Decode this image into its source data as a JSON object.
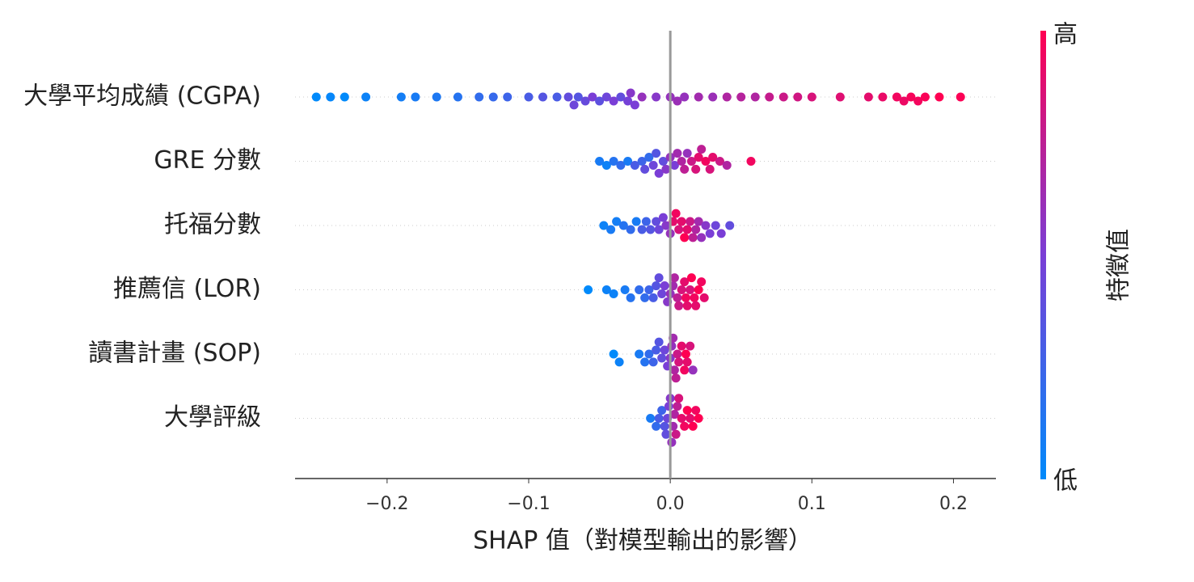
{
  "chart_data": {
    "type": "beeswarm",
    "x_label": "SHAP 值（對模型輸出的影響）",
    "xlim": [
      -0.265,
      0.23
    ],
    "xticks": [
      {
        "value": -0.2,
        "label": "−0.2"
      },
      {
        "value": -0.1,
        "label": "−0.1"
      },
      {
        "value": 0,
        "label": "0.0"
      },
      0.1,
      0.2
    ],
    "colormap": [
      "#008afb",
      "#7a3ed6",
      "#ff0052"
    ],
    "colorbar": {
      "label": "特徵值",
      "high": "高",
      "low": "低"
    },
    "features": [
      {
        "name": "大學平均成績 (CGPA)",
        "shap": [
          -0.25,
          -0.24,
          -0.23,
          -0.215,
          -0.19,
          -0.18,
          -0.165,
          -0.15,
          -0.135,
          -0.125,
          -0.115,
          -0.1,
          -0.09,
          -0.08,
          -0.072,
          -0.068,
          -0.065,
          -0.06,
          -0.055,
          -0.05,
          -0.045,
          -0.04,
          -0.035,
          -0.03,
          -0.028,
          -0.025,
          -0.02,
          -0.01,
          0.0,
          0.005,
          0.01,
          0.02,
          0.03,
          0.04,
          0.05,
          0.06,
          0.07,
          0.08,
          0.09,
          0.1,
          0.12,
          0.14,
          0.15,
          0.16,
          0.165,
          0.17,
          0.175,
          0.18,
          0.19,
          0.205
        ],
        "feature_value": [
          0.0,
          0.02,
          0.0,
          0.05,
          0.08,
          0.1,
          0.12,
          0.15,
          0.2,
          0.22,
          0.25,
          0.3,
          0.35,
          0.3,
          0.4,
          0.45,
          0.35,
          0.42,
          0.5,
          0.38,
          0.45,
          0.5,
          0.4,
          0.48,
          0.55,
          0.5,
          0.6,
          0.55,
          0.6,
          0.62,
          0.6,
          0.65,
          0.62,
          0.7,
          0.72,
          0.7,
          0.78,
          0.8,
          0.82,
          0.85,
          0.88,
          0.9,
          0.92,
          0.95,
          0.93,
          0.97,
          0.96,
          0.98,
          1.0,
          0.99
        ]
      },
      {
        "name": "GRE 分數",
        "shap": [
          -0.05,
          -0.045,
          -0.04,
          -0.035,
          -0.03,
          -0.025,
          -0.02,
          -0.018,
          -0.015,
          -0.012,
          -0.01,
          -0.008,
          -0.005,
          -0.003,
          0.0,
          0.003,
          0.005,
          0.008,
          0.01,
          0.012,
          0.015,
          0.018,
          0.02,
          0.022,
          0.025,
          0.028,
          0.03,
          0.035,
          0.04,
          0.057
        ],
        "feature_value": [
          0.1,
          0.05,
          0.15,
          0.2,
          0.1,
          0.3,
          0.25,
          0.4,
          0.2,
          0.45,
          0.35,
          0.5,
          0.4,
          0.55,
          0.6,
          0.5,
          0.65,
          0.7,
          0.75,
          0.6,
          0.8,
          0.85,
          0.9,
          0.75,
          0.95,
          0.85,
          0.9,
          0.8,
          0.7,
          0.95
        ]
      },
      {
        "name": "托福分數",
        "shap": [
          -0.047,
          -0.042,
          -0.038,
          -0.033,
          -0.028,
          -0.024,
          -0.02,
          -0.017,
          -0.014,
          -0.01,
          -0.008,
          -0.005,
          -0.003,
          0.0,
          0.002,
          0.004,
          0.006,
          0.008,
          0.01,
          0.012,
          0.014,
          0.016,
          0.018,
          0.02,
          0.022,
          0.025,
          0.028,
          0.032,
          0.036,
          0.042
        ],
        "feature_value": [
          0.05,
          0.1,
          0.08,
          0.15,
          0.2,
          0.1,
          0.3,
          0.25,
          0.35,
          0.4,
          0.45,
          0.5,
          0.55,
          0.6,
          0.9,
          0.95,
          0.85,
          0.9,
          1.0,
          0.9,
          0.8,
          0.75,
          0.7,
          0.65,
          0.6,
          0.55,
          0.5,
          0.45,
          0.5,
          0.4
        ]
      },
      {
        "name": "推薦信 (LOR)",
        "shap": [
          -0.058,
          -0.045,
          -0.04,
          -0.032,
          -0.028,
          -0.022,
          -0.018,
          -0.015,
          -0.012,
          -0.01,
          -0.008,
          -0.006,
          -0.004,
          -0.002,
          0.0,
          0.002,
          0.003,
          0.005,
          0.006,
          0.008,
          0.01,
          0.011,
          0.012,
          0.014,
          0.015,
          0.017,
          0.018,
          0.02,
          0.022,
          0.024
        ],
        "feature_value": [
          0.0,
          0.05,
          0.05,
          0.1,
          0.15,
          0.2,
          0.2,
          0.25,
          0.3,
          0.35,
          0.4,
          0.45,
          0.5,
          0.55,
          0.6,
          0.65,
          0.7,
          0.75,
          0.8,
          0.85,
          0.9,
          0.95,
          0.9,
          0.85,
          1.0,
          0.95,
          0.9,
          1.0,
          0.95,
          0.9
        ]
      },
      {
        "name": "讀書計畫 (SOP)",
        "shap": [
          -0.04,
          -0.036,
          -0.022,
          -0.018,
          -0.015,
          -0.012,
          -0.01,
          -0.008,
          -0.006,
          -0.004,
          -0.002,
          0.0,
          0.001,
          0.002,
          0.003,
          0.004,
          0.005,
          0.006,
          0.008,
          0.01,
          0.011,
          0.012,
          0.014,
          0.016
        ],
        "feature_value": [
          0.0,
          0.05,
          0.1,
          0.15,
          0.2,
          0.25,
          0.3,
          0.35,
          0.4,
          0.45,
          0.5,
          0.55,
          0.6,
          0.65,
          0.7,
          0.75,
          0.8,
          0.85,
          0.9,
          0.95,
          1.0,
          0.9,
          0.85,
          0.6
        ]
      },
      {
        "name": "大學評級",
        "shap": [
          -0.014,
          -0.01,
          -0.008,
          -0.006,
          -0.004,
          -0.003,
          -0.002,
          -0.001,
          0.0,
          0.001,
          0.002,
          0.003,
          0.004,
          0.005,
          0.006,
          0.008,
          0.01,
          0.012,
          0.014,
          0.016,
          0.018,
          0.02
        ],
        "feature_value": [
          0.1,
          0.2,
          0.3,
          0.25,
          0.35,
          0.4,
          0.45,
          0.5,
          0.55,
          0.6,
          0.65,
          0.7,
          0.8,
          0.75,
          0.85,
          0.9,
          0.95,
          1.0,
          0.9,
          1.0,
          0.95,
          1.0
        ]
      }
    ]
  }
}
